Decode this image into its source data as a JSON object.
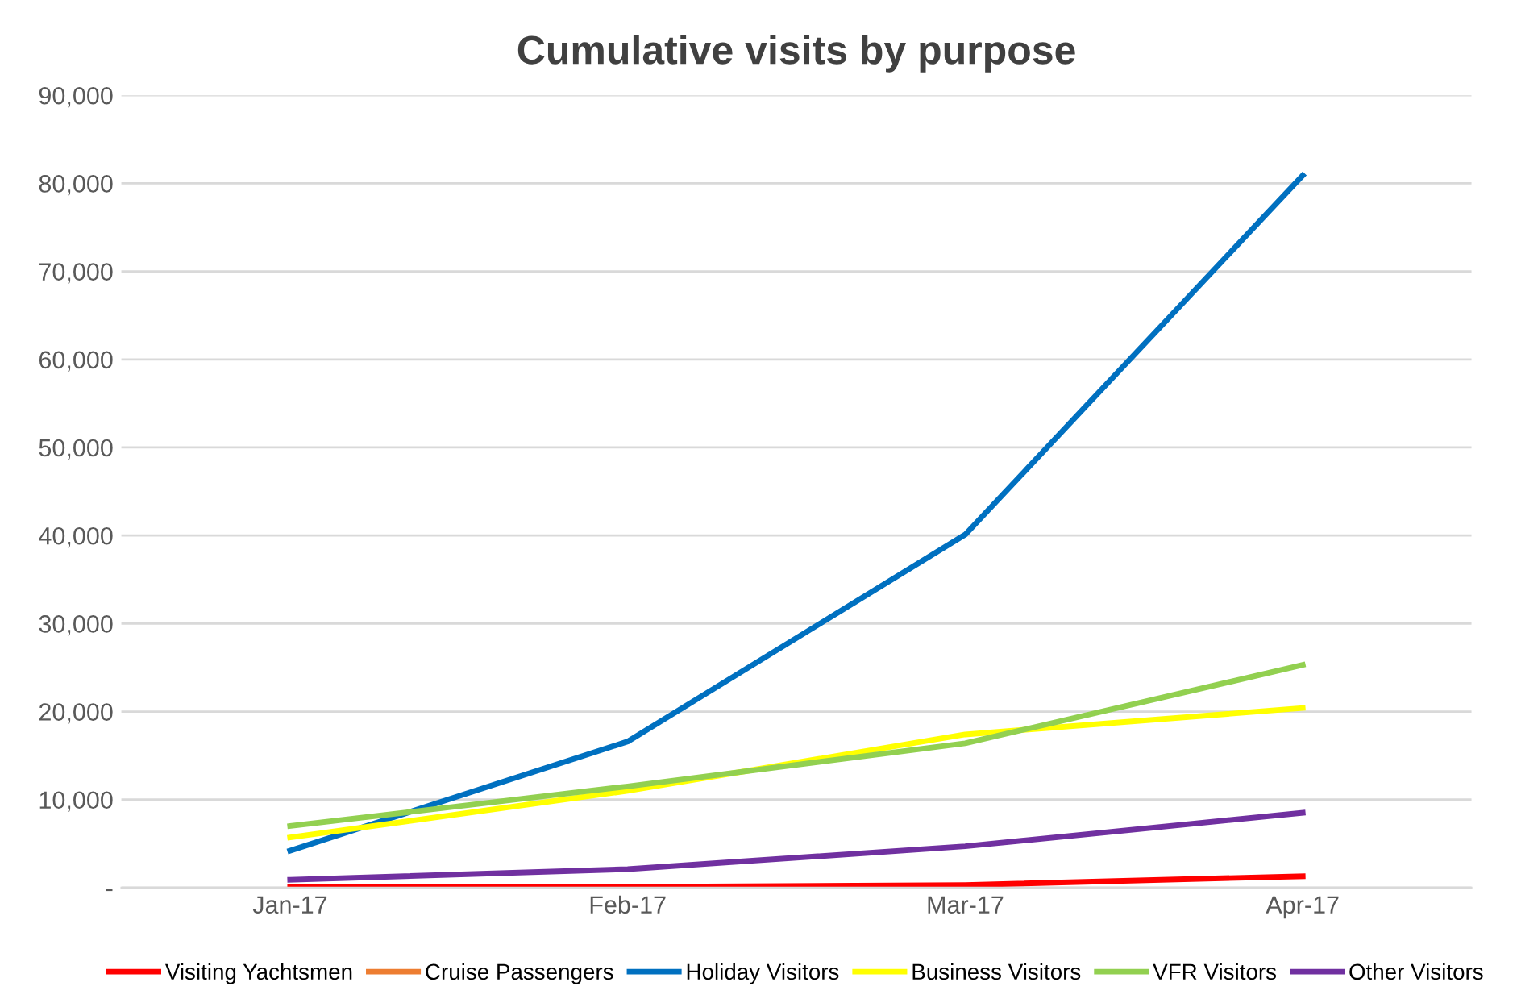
{
  "chart_data": {
    "type": "line",
    "title": "Cumulative visits by purpose",
    "categories": [
      "Jan-17",
      "Feb-17",
      "Mar-17",
      "Apr-17"
    ],
    "series": [
      {
        "name": "Visiting Yachtsmen",
        "color": "#ff0000",
        "values": [
          100,
          100,
          300,
          1300
        ]
      },
      {
        "name": "Cruise Passengers",
        "color": "#ed7d31",
        "values": [
          null,
          null,
          null,
          null
        ]
      },
      {
        "name": "Holiday Visitors",
        "color": "#0070c0",
        "values": [
          4200,
          16600,
          40100,
          80900
        ]
      },
      {
        "name": "Business Visitors",
        "color": "#ffff00",
        "values": [
          5700,
          11000,
          17400,
          20400
        ]
      },
      {
        "name": "VFR Visitors",
        "color": "#92d050",
        "values": [
          7000,
          11500,
          16400,
          25300
        ]
      },
      {
        "name": "Other Visitors",
        "color": "#7030a0",
        "values": [
          900,
          2100,
          4700,
          8500
        ]
      }
    ],
    "ylim": [
      0,
      90000
    ],
    "yticks": [
      {
        "value": 0,
        "label": "-"
      },
      {
        "value": 10000,
        "label": "10,000"
      },
      {
        "value": 20000,
        "label": "20,000"
      },
      {
        "value": 30000,
        "label": "30,000"
      },
      {
        "value": 40000,
        "label": "40,000"
      },
      {
        "value": 50000,
        "label": "50,000"
      },
      {
        "value": 60000,
        "label": "60,000"
      },
      {
        "value": 70000,
        "label": "70,000"
      },
      {
        "value": 80000,
        "label": "80,000"
      },
      {
        "value": 90000,
        "label": "90,000"
      }
    ],
    "grid": "y",
    "legend": "bottom",
    "marker": "none",
    "line_style": "solid"
  }
}
